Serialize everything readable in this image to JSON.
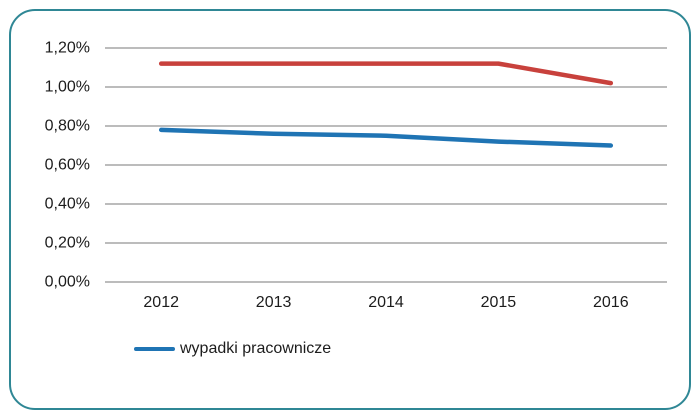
{
  "frame": {
    "border_color": "#2f8795",
    "background_color": "#ffffff",
    "gridline_color": "#a6a6a6",
    "text_color": "#1c1c1c"
  },
  "chart_data": {
    "type": "line",
    "title": "",
    "xlabel": "",
    "ylabel": "",
    "categories": [
      "2012",
      "2013",
      "2014",
      "2015",
      "2016"
    ],
    "series": [
      {
        "name": "",
        "color": "#c8413c",
        "values": [
          1.12,
          1.12,
          1.12,
          1.12,
          1.02
        ]
      },
      {
        "name": "wypadki pracownicze",
        "color": "#1f74b4",
        "values": [
          0.78,
          0.76,
          0.75,
          0.72,
          0.7
        ]
      }
    ],
    "ylim": [
      0.0,
      1.2
    ],
    "y_ticks": [
      {
        "value": 0.0,
        "label": "0,00%"
      },
      {
        "value": 0.2,
        "label": "0,20%"
      },
      {
        "value": 0.4,
        "label": "0,40%"
      },
      {
        "value": 0.6,
        "label": "0,60%"
      },
      {
        "value": 0.8,
        "label": "0,80%"
      },
      {
        "value": 1.0,
        "label": "1,00%"
      },
      {
        "value": 1.2,
        "label": "1,20%"
      }
    ],
    "grid": true,
    "legend": {
      "position": "bottom",
      "entries": [
        {
          "label": "wypadki pracownicze",
          "color": "#1f74b4"
        }
      ]
    }
  }
}
